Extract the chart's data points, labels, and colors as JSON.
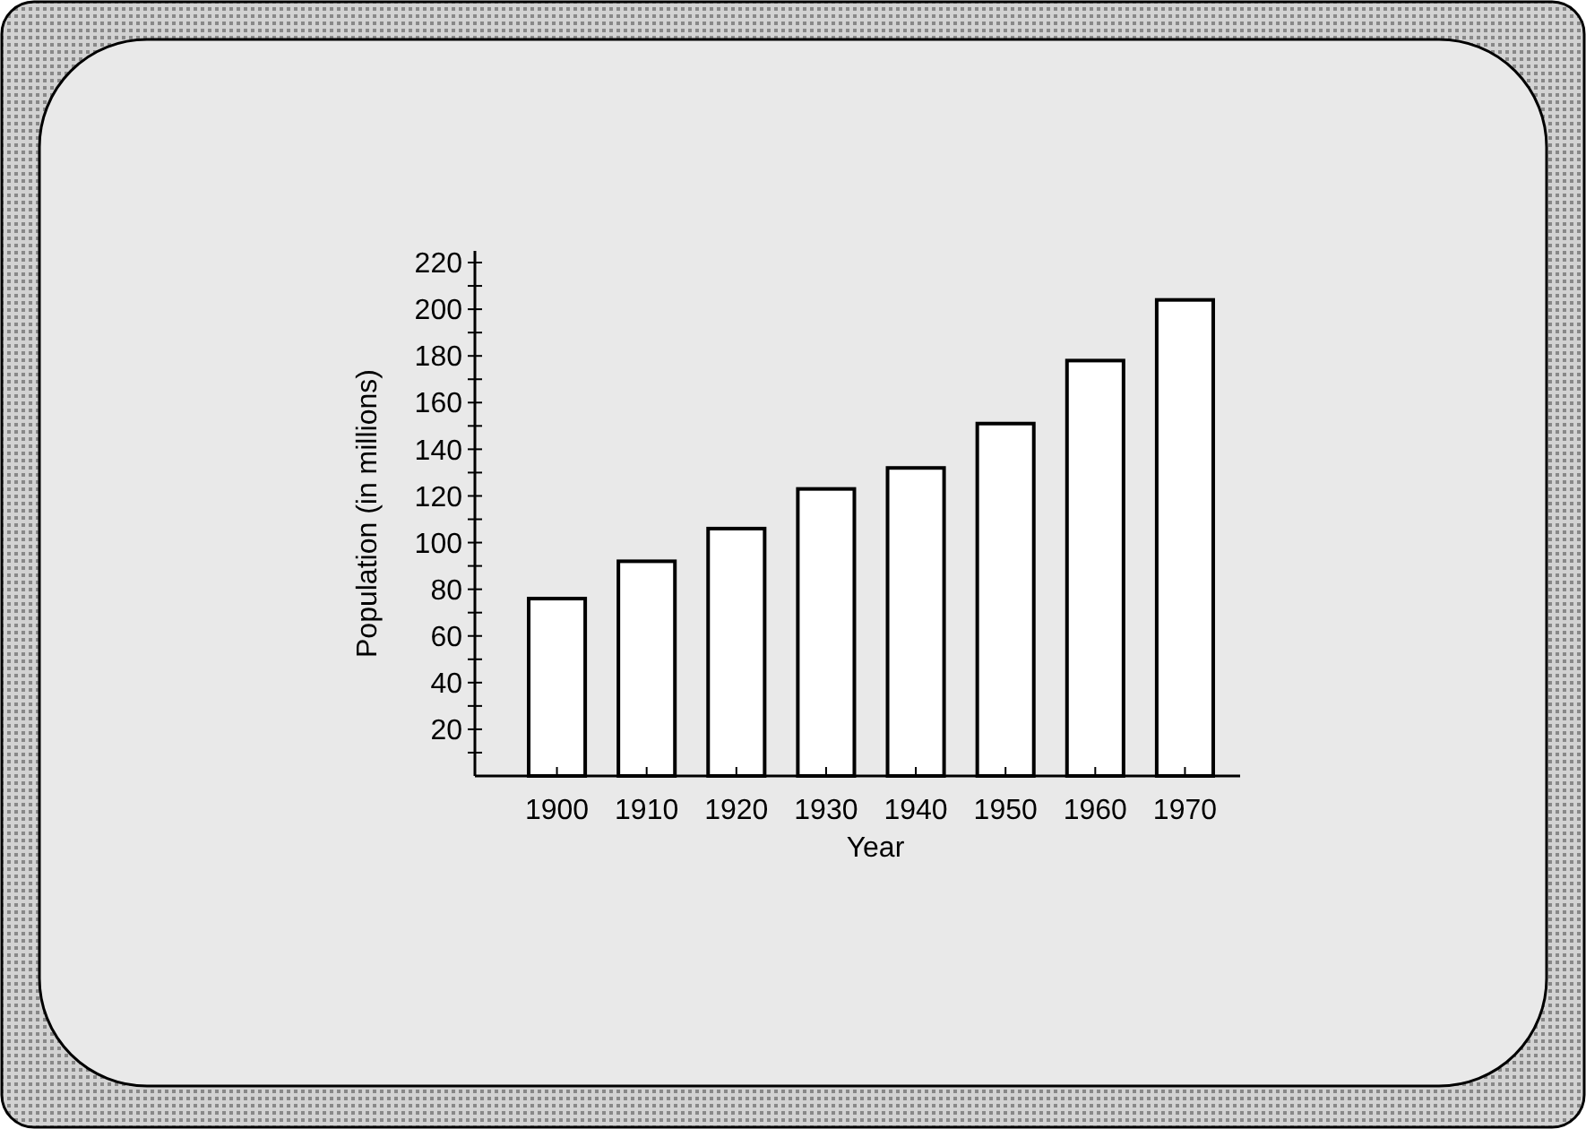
{
  "chart_data": {
    "type": "bar",
    "xlabel": "Year",
    "ylabel": "Population (in millions)",
    "categories": [
      "1900",
      "1910",
      "1920",
      "1930",
      "1940",
      "1950",
      "1960",
      "1970"
    ],
    "values": [
      76,
      92,
      106,
      123,
      132,
      151,
      178,
      204
    ],
    "color": "#ffffff",
    "ylim": [
      0,
      225
    ],
    "yticks": [
      {
        "value": 10,
        "label": null
      },
      20,
      {
        "value": 30,
        "label": null
      },
      40,
      {
        "value": 50,
        "label": null
      },
      60,
      {
        "value": 70,
        "label": null
      },
      80,
      {
        "value": 90,
        "label": null
      },
      100,
      {
        "value": 110,
        "label": null
      },
      120,
      {
        "value": 130,
        "label": null
      },
      140,
      {
        "value": 150,
        "label": null
      },
      160,
      {
        "value": 170,
        "label": null
      },
      180,
      {
        "value": 190,
        "label": null
      },
      200,
      {
        "value": 210,
        "label": null
      },
      220
    ],
    "grid": false
  }
}
